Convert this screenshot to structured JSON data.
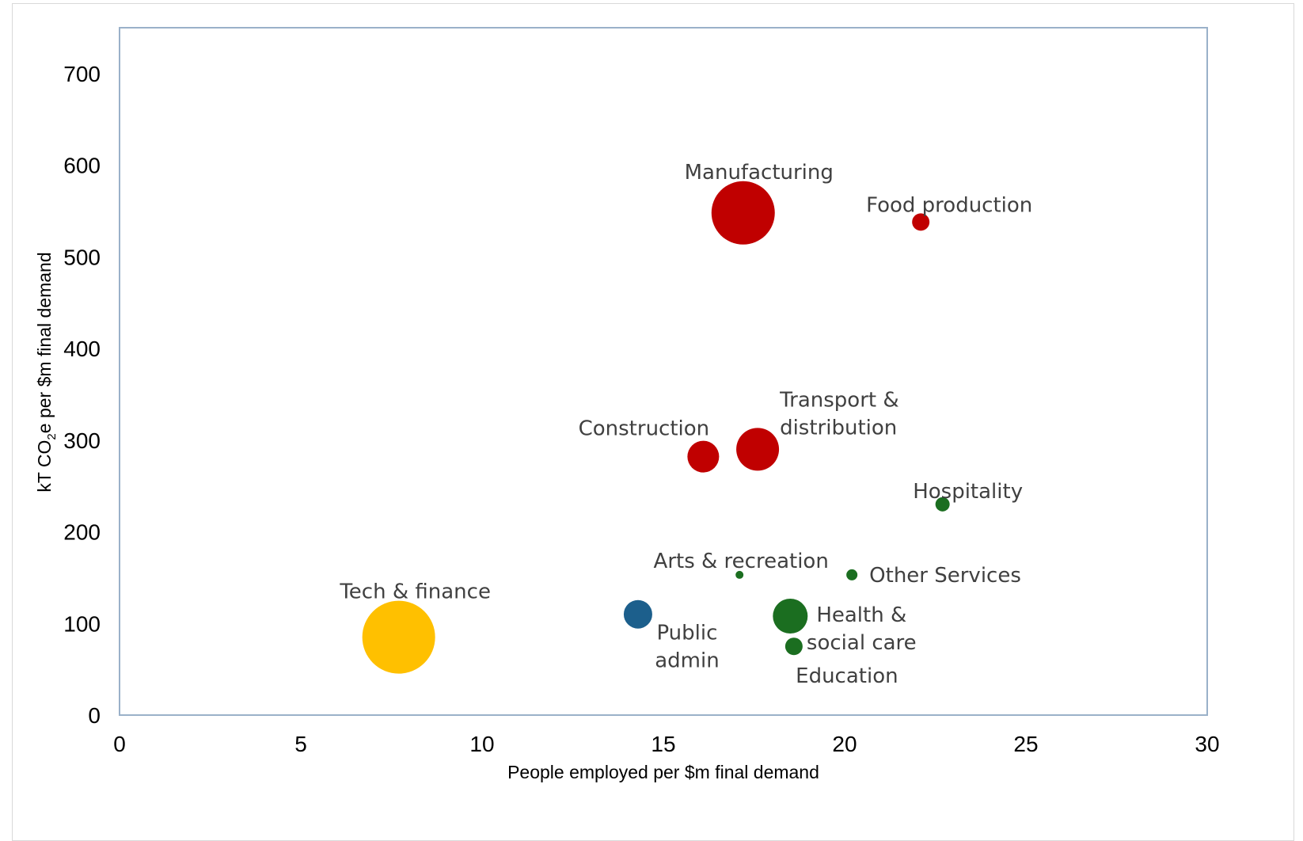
{
  "chart_data": {
    "type": "scatter",
    "variant": "bubble",
    "title": "",
    "xlabel": "People employed per $m final demand",
    "ylabel_parts": [
      "kT CO",
      "2",
      "e per $m final demand"
    ],
    "xlim": [
      0,
      30
    ],
    "ylim": [
      0,
      750
    ],
    "x_ticks": [
      "0",
      "5",
      "10",
      "15",
      "20",
      "25",
      "30"
    ],
    "y_ticks": [
      "0",
      "100",
      "200",
      "300",
      "400",
      "500",
      "600",
      "700"
    ],
    "grid": false,
    "legend": "none",
    "colors": {
      "high_emission": "#c00000",
      "services": "#1b6e20",
      "public": "#1c5f8c",
      "tech": "#ffc000",
      "plot_border": "#9ab1c9"
    },
    "points": [
      {
        "label": "Manufacturing",
        "x": 17.2,
        "y": 548,
        "size": 40,
        "color": "#c00000"
      },
      {
        "label": "Food production",
        "x": 22.1,
        "y": 538,
        "size": 11,
        "color": "#c00000"
      },
      {
        "label": "Construction",
        "x": 16.1,
        "y": 282,
        "size": 20,
        "color": "#c00000"
      },
      {
        "label": "Transport & distribution",
        "x": 17.6,
        "y": 290,
        "size": 27,
        "color": "#c00000"
      },
      {
        "label": "Hospitality",
        "x": 22.7,
        "y": 230,
        "size": 9,
        "color": "#1b6e20"
      },
      {
        "label": "Arts & recreation",
        "x": 17.1,
        "y": 153,
        "size": 5,
        "color": "#1b6e20"
      },
      {
        "label": "Other Services",
        "x": 20.2,
        "y": 153,
        "size": 7,
        "color": "#1b6e20"
      },
      {
        "label": "Health & social care",
        "x": 18.5,
        "y": 108,
        "size": 22,
        "color": "#1b6e20"
      },
      {
        "label": "Education",
        "x": 18.6,
        "y": 75,
        "size": 11,
        "color": "#1b6e20"
      },
      {
        "label": "Public admin",
        "x": 14.3,
        "y": 110,
        "size": 18,
        "color": "#1c5f8c"
      },
      {
        "label": "Tech & finance",
        "x": 7.7,
        "y": 85,
        "size": 46,
        "color": "#ffc000"
      }
    ],
    "label_lines": {
      "Manufacturing": [
        "Manufacturing"
      ],
      "Food production": [
        "Food production"
      ],
      "Construction": [
        "Construction"
      ],
      "Transport & distribution": [
        "Transport &",
        "distribution"
      ],
      "Hospitality": [
        "Hospitality"
      ],
      "Arts & recreation": [
        "Arts & recreation"
      ],
      "Other Services": [
        "Other Services"
      ],
      "Health & social care": [
        "Health &",
        "social care"
      ],
      "Education": [
        "Education"
      ],
      "Public admin": [
        "Public",
        "admin"
      ],
      "Tech & finance": [
        "Tech & finance"
      ]
    }
  }
}
